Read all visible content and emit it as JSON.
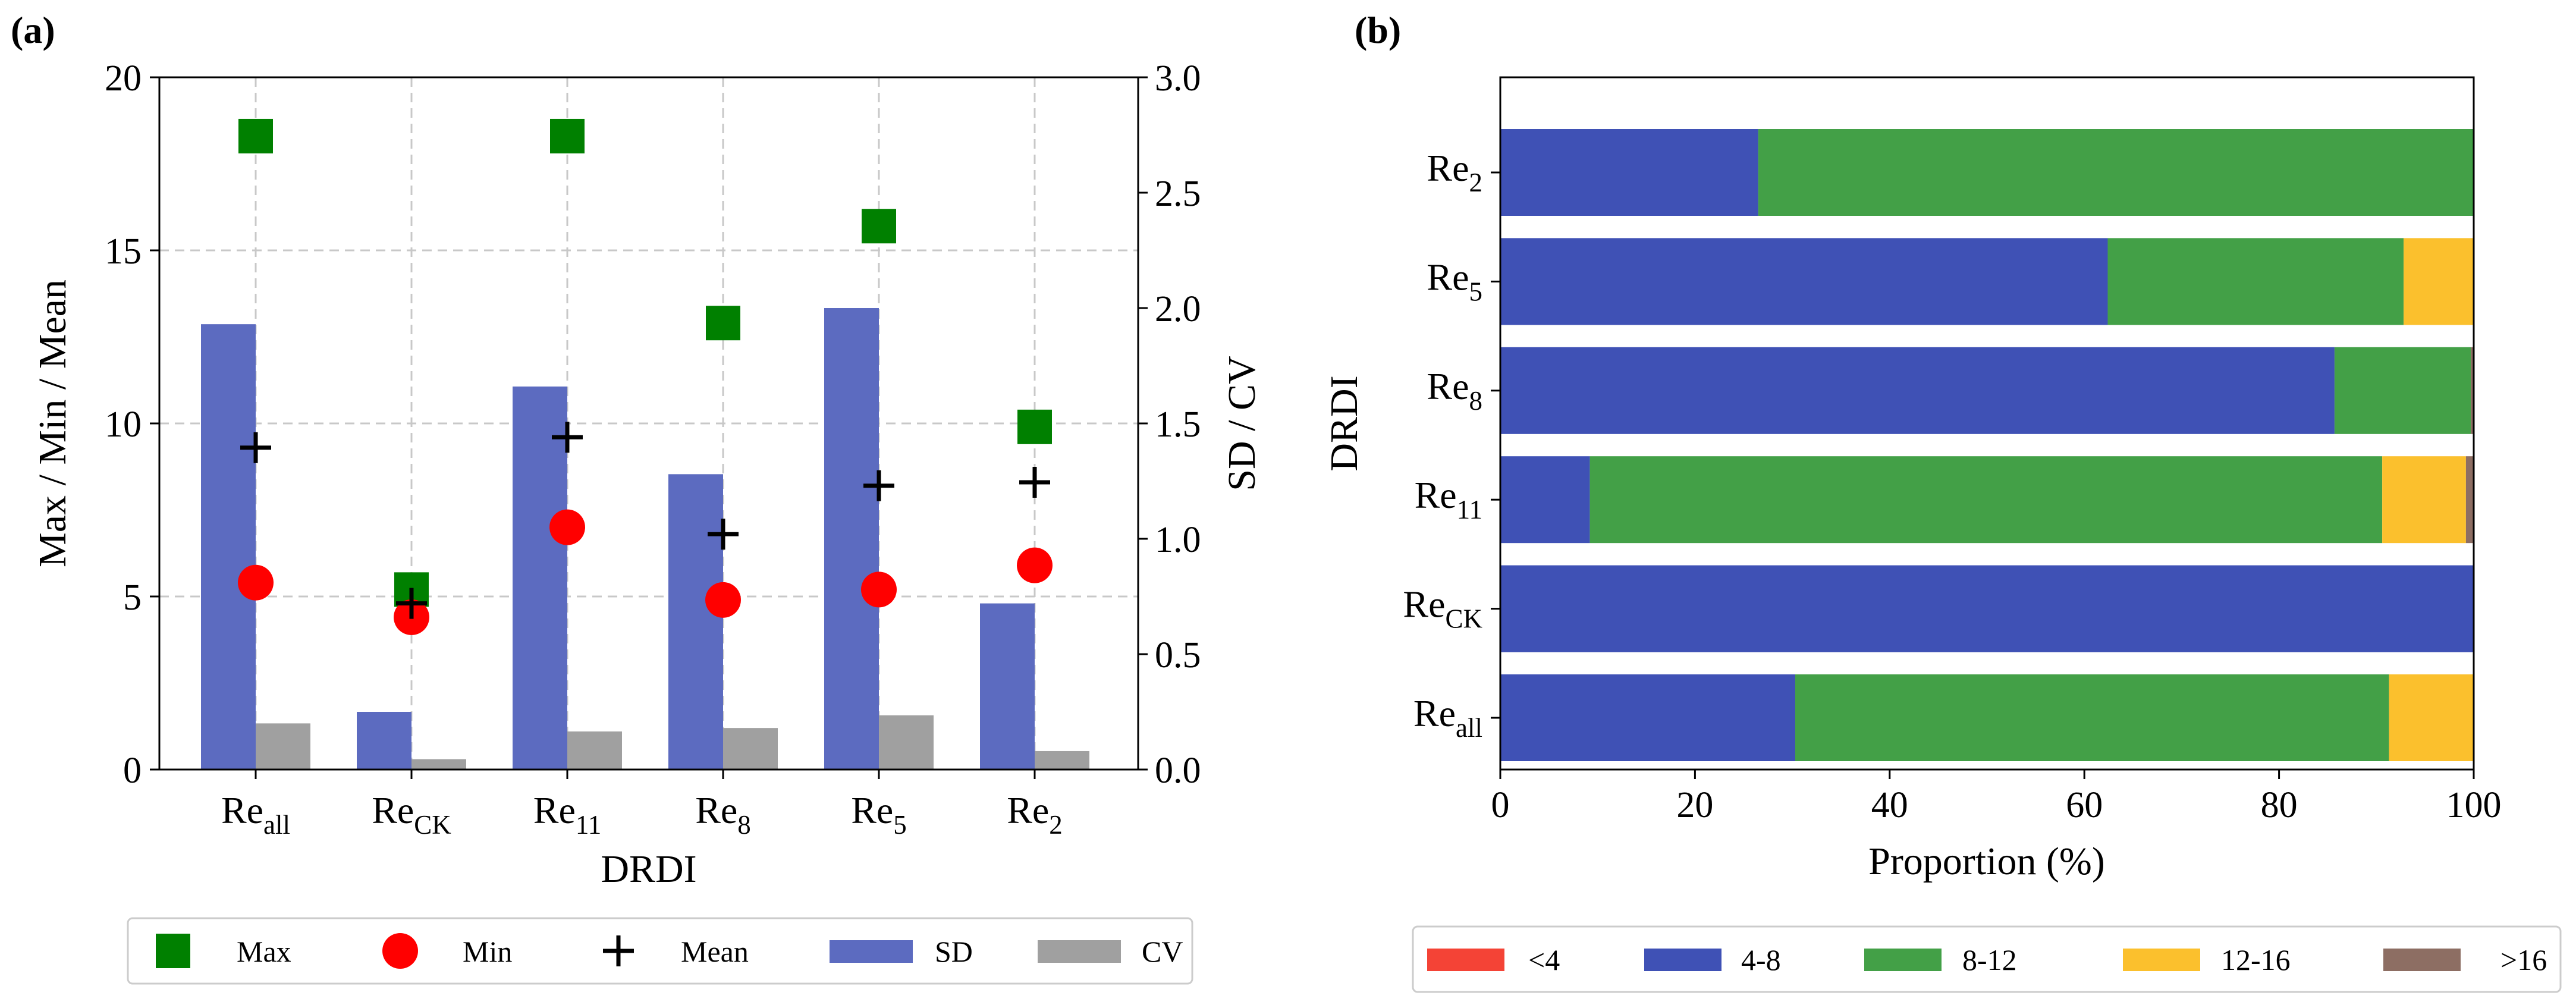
{
  "colors": {
    "max": "#008000",
    "min": "#ff0000",
    "mean": "#000000",
    "sd": "#5c6bc0",
    "cv": "#a0a0a0",
    "lt4": "#f44336",
    "c4_8": "#3f51b5",
    "c8_12": "#43a047",
    "c12_16": "#fbc02d",
    "gt16": "#8d6e63"
  },
  "chart_data": [
    {
      "panel_label": "(a)",
      "type": "bar+scatter",
      "xlabel": "DRDI",
      "ylabel_left": "Max / Min / Mean",
      "ylabel_right": "SD / CV",
      "ylim_left": [
        0,
        20
      ],
      "ylim_right": [
        0,
        3.0
      ],
      "yticks_left": [
        "0",
        "5",
        "10",
        "15",
        "20"
      ],
      "yticks_right": [
        "0.0",
        "0.5",
        "1.0",
        "1.5",
        "2.0",
        "2.5",
        "3.0"
      ],
      "categories": [
        {
          "base": "Re",
          "sub": "all"
        },
        {
          "base": "Re",
          "sub": "CK"
        },
        {
          "base": "Re",
          "sub": "11"
        },
        {
          "base": "Re",
          "sub": "8"
        },
        {
          "base": "Re",
          "sub": "5"
        },
        {
          "base": "Re",
          "sub": "2"
        }
      ],
      "series": {
        "max": [
          18.3,
          5.2,
          18.3,
          12.9,
          15.7,
          9.9
        ],
        "min": [
          5.4,
          4.4,
          7.0,
          4.9,
          5.2,
          5.9
        ],
        "mean": [
          9.3,
          4.8,
          9.6,
          6.8,
          8.2,
          8.3
        ],
        "sd": [
          1.93,
          0.25,
          1.66,
          1.28,
          2.0,
          0.72
        ],
        "cv": [
          0.2,
          0.045,
          0.165,
          0.18,
          0.235,
          0.08
        ]
      },
      "legend": [
        "Max",
        "Min",
        "Mean",
        "SD",
        "CV"
      ],
      "legend_position": "bottom"
    },
    {
      "panel_label": "(b)",
      "type": "stacked-horizontal-bar",
      "xlabel": "Proportion (%)",
      "ylabel": "DRDI",
      "xlim": [
        0,
        100
      ],
      "xticks": [
        "0",
        "20",
        "40",
        "60",
        "80",
        "100"
      ],
      "categories": [
        {
          "base": "Re",
          "sub": "2"
        },
        {
          "base": "Re",
          "sub": "5"
        },
        {
          "base": "Re",
          "sub": "8"
        },
        {
          "base": "Re",
          "sub": "11"
        },
        {
          "base": "Re",
          "sub": "CK"
        },
        {
          "base": "Re",
          "sub": "all"
        }
      ],
      "series": [
        {
          "name": "<4",
          "values": [
            0,
            0,
            0,
            0,
            0,
            0
          ]
        },
        {
          "name": "4-8",
          "values": [
            26.5,
            62.4,
            85.7,
            9.2,
            100,
            30.3
          ]
        },
        {
          "name": "8-12",
          "values": [
            73.5,
            30.4,
            14.0,
            81.4,
            0,
            61.0
          ]
        },
        {
          "name": "12-16",
          "values": [
            0,
            7.2,
            0,
            8.6,
            0,
            8.7
          ]
        },
        {
          "name": ">16",
          "values": [
            0,
            0,
            0.3,
            0.8,
            0,
            0
          ]
        }
      ],
      "legend_position": "bottom"
    }
  ]
}
